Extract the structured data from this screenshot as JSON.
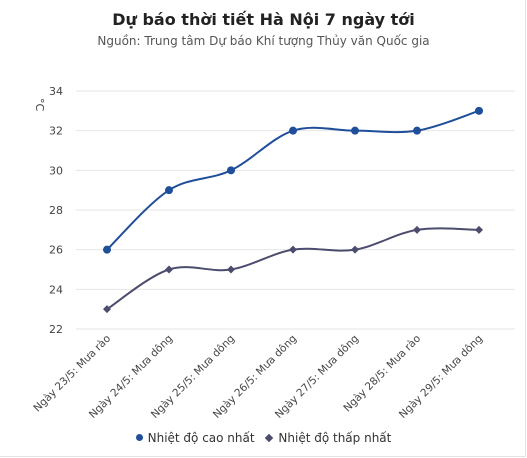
{
  "colors": {
    "high": "#1f4e9a",
    "low": "#4c4c6e",
    "grid": "#e6e6e6",
    "text": "#444444"
  },
  "chart_data": {
    "type": "line",
    "title": "Dự báo thời tiết Hà Nội 7 ngày tới",
    "subtitle": "Nguồn: Trung tâm Dự báo Khí tượng Thủy văn Quốc gia",
    "ylabel": "°C",
    "ylim": [
      22,
      34
    ],
    "yticks": [
      22,
      24,
      26,
      28,
      30,
      32,
      34
    ],
    "grid": true,
    "legend": "bottom",
    "categories": [
      "Ngày 23/5: Mưa rào",
      "Ngày 24/5: Mưa dông",
      "Ngày 25/5: Mưa dông",
      "Ngày 26/5: Mưa dông",
      "Ngày 27/5: Mưa dông",
      "Ngày 28/5: Mưa rào",
      "Ngày 29/5: Mưa dông"
    ],
    "series": [
      {
        "name": "Nhiệt độ cao nhất",
        "values": [
          26,
          29,
          30,
          32,
          32,
          32,
          33
        ],
        "marker": "circle",
        "color": "#1f4e9a"
      },
      {
        "name": "Nhiệt độ thấp nhất",
        "values": [
          23,
          25,
          25,
          26,
          26,
          27,
          27
        ],
        "marker": "diamond",
        "color": "#4c4c6e"
      }
    ]
  }
}
